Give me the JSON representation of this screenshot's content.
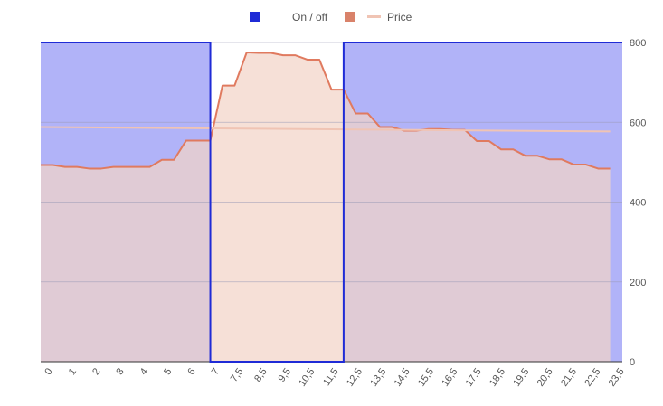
{
  "chart_data": {
    "type": "area",
    "legend_position": "top",
    "grid": true,
    "y_axis_side": "right",
    "ylim": [
      0,
      800
    ],
    "y_ticks": [
      0,
      200,
      400,
      600,
      800
    ],
    "x_tick_labels": [
      "0",
      "1",
      "2",
      "3",
      "4",
      "5",
      "6",
      "7",
      "7,5",
      "8,5",
      "9,5",
      "10,5",
      "11,5",
      "12,5",
      "13,5",
      "14,5",
      "15,5",
      "16,5",
      "17,5",
      "18,5",
      "19,5",
      "20,5",
      "21,5",
      "22,5",
      "23,5"
    ],
    "series": [
      {
        "name": "On / off",
        "kind": "stepped-area",
        "color": "#1f2bd6",
        "fill": "#b1b3f8",
        "high": 800,
        "low": 0,
        "intervals_on": [
          [
            0,
            7
          ],
          [
            12.5,
            24
          ]
        ],
        "intervals_off": [
          [
            7,
            12.5
          ]
        ]
      },
      {
        "name": "",
        "kind": "stepped-area",
        "color": "#e07a5f",
        "fill": "#f3d4c8",
        "x": [
          0,
          0.5,
          1,
          1.5,
          2,
          2.5,
          3,
          3.5,
          4,
          4.5,
          5,
          5.5,
          6,
          6.5,
          7,
          7.5,
          8,
          8.5,
          9,
          9.5,
          10,
          10.5,
          11,
          11.5,
          12,
          12.5,
          13,
          13.5,
          14,
          14.5,
          15,
          15.5,
          16,
          16.5,
          17,
          17.5,
          18,
          18.5,
          19,
          19.5,
          20,
          20.5,
          21,
          21.5,
          22,
          22.5,
          23,
          23.5
        ],
        "values": [
          493,
          493,
          488,
          488,
          484,
          484,
          488,
          488,
          488,
          488,
          506,
          506,
          554,
          554,
          554,
          692,
          692,
          775,
          774,
          774,
          768,
          768,
          757,
          757,
          682,
          682,
          622,
          622,
          588,
          588,
          579,
          579,
          583,
          583,
          581,
          581,
          553,
          553,
          532,
          532,
          516,
          516,
          507,
          507,
          494,
          494,
          484,
          484
        ]
      },
      {
        "name": "Price",
        "kind": "line",
        "color": "#f0c4b4",
        "x": [
          0,
          23.5
        ],
        "values": [
          588,
          577
        ]
      }
    ]
  }
}
